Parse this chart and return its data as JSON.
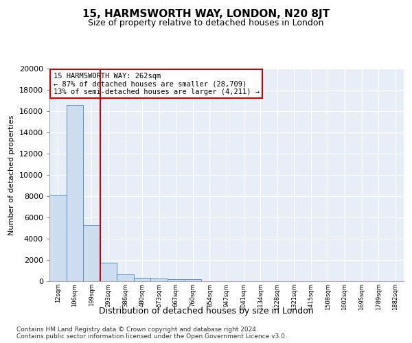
{
  "title": "15, HARMSWORTH WAY, LONDON, N20 8JT",
  "subtitle": "Size of property relative to detached houses in London",
  "xlabel": "Distribution of detached houses by size in London",
  "ylabel": "Number of detached properties",
  "footer_line1": "Contains HM Land Registry data © Crown copyright and database right 2024.",
  "footer_line2": "Contains public sector information licensed under the Open Government Licence v3.0.",
  "annotation_line1": "15 HARMSWORTH WAY: 262sqm",
  "annotation_line2": "← 87% of detached houses are smaller (28,709)",
  "annotation_line3": "13% of semi-detached houses are larger (4,211) →",
  "bar_edge_color": "#5b8fc9",
  "bar_face_color": "#ccddf0",
  "vline_color": "#cc0000",
  "background_color": "#e8eef8",
  "categories": [
    "12sqm",
    "106sqm",
    "199sqm",
    "293sqm",
    "386sqm",
    "480sqm",
    "573sqm",
    "667sqm",
    "760sqm",
    "854sqm",
    "947sqm",
    "1041sqm",
    "1134sqm",
    "1228sqm",
    "1321sqm",
    "1415sqm",
    "1508sqm",
    "1602sqm",
    "1695sqm",
    "1789sqm",
    "1882sqm"
  ],
  "bar_values": [
    8100,
    16600,
    5300,
    1750,
    650,
    320,
    260,
    200,
    190,
    0,
    0,
    0,
    0,
    0,
    0,
    0,
    0,
    0,
    0,
    0,
    0
  ],
  "ylim": [
    0,
    20000
  ],
  "vline_x": 2.5,
  "bar_width": 1.0,
  "grid_color": "#ffffff",
  "yticks": [
    0,
    2000,
    4000,
    6000,
    8000,
    10000,
    12000,
    14000,
    16000,
    18000,
    20000
  ]
}
